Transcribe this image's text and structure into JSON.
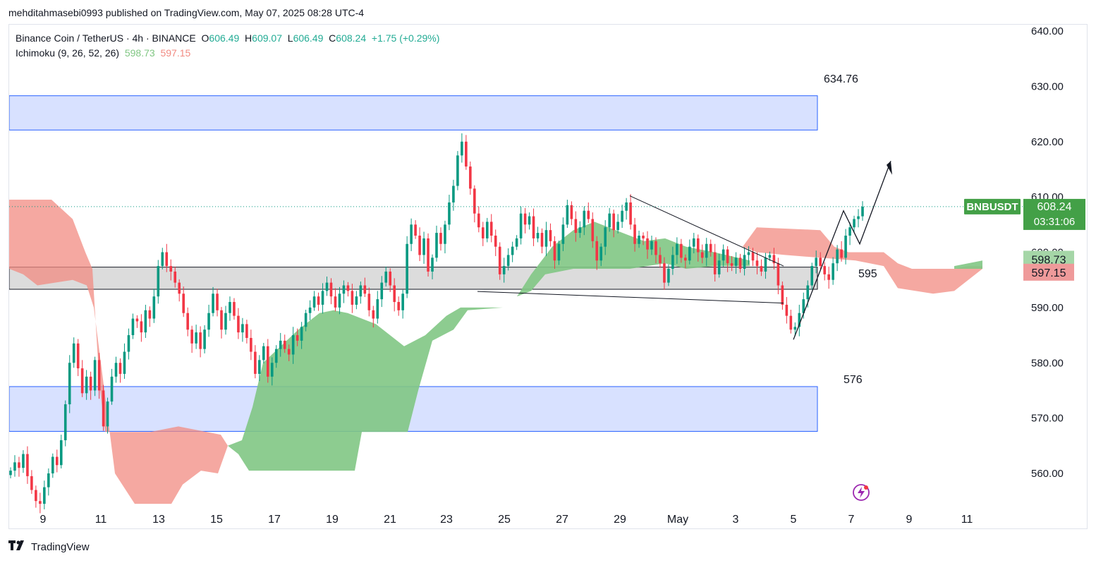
{
  "header": {
    "published": "mehditahmasebi0993 published on TradingView.com, May 07, 2025 08:28 UTC-4"
  },
  "legend": {
    "symbol": "Binance Coin / TetherUS · 4h · BINANCE",
    "o_label": "O",
    "o_value": "606.49",
    "h_label": "H",
    "h_value": "609.07",
    "l_label": "L",
    "l_value": "606.49",
    "c_label": "C",
    "c_value": "608.24",
    "change": "+1.75 (+0.29%)",
    "indicator": "Ichimoku (9, 26, 52, 26)",
    "ind_a": "598.73",
    "ind_b": "597.15"
  },
  "badges": {
    "symbol": "BNBUSDT",
    "price": "608.24",
    "countdown": "03:31:06",
    "span_a": "598.73",
    "span_b": "597.15"
  },
  "footer": {
    "brand": "TradingView"
  },
  "colors": {
    "up": "#089981",
    "down": "#f23645",
    "bull_cloud": "#81c784",
    "bear_cloud": "#f28b82",
    "zone_blue": "#d1dcff",
    "zone_blue_border": "#2962ff",
    "zone_gray": "#d6d6d6",
    "price_badge": "#43a047"
  },
  "chart_data": {
    "type": "candlestick",
    "title": "Binance Coin / TetherUS · 4h · BINANCE",
    "ylim": [
      554,
      642
    ],
    "y_ticks": [
      "640.00",
      "630.00",
      "620.00",
      "610.00",
      "600.00",
      "590.00",
      "580.00",
      "570.00",
      "560.00"
    ],
    "x_ticks": [
      "9",
      "11",
      "13",
      "15",
      "17",
      "19",
      "21",
      "23",
      "25",
      "27",
      "29",
      "May",
      "3",
      "5",
      "7",
      "9",
      "11"
    ],
    "zones": [
      {
        "label": "634.76",
        "type": "resistance",
        "top": 628.3,
        "bottom": 622.1
      },
      {
        "label": "595",
        "type": "pivot",
        "top": 597.3,
        "bottom": 593.3
      },
      {
        "label": "576",
        "type": "support",
        "top": 575.7,
        "bottom": 567.6
      }
    ],
    "current_price": 608.24,
    "ichimoku": {
      "span_a": 598.73,
      "span_b": 597.15
    },
    "candle_closes": [
      560.5,
      562.0,
      561.0,
      563.5,
      559.5,
      557.0,
      555.0,
      554.5,
      557.5,
      560.0,
      563.0,
      561.5,
      566.0,
      572.5,
      580.0,
      583.5,
      579.0,
      574.5,
      577.5,
      575.0,
      580.5,
      575.0,
      568.5,
      573.0,
      577.5,
      580.0,
      578.0,
      582.0,
      585.0,
      588.0,
      587.5,
      585.5,
      589.5,
      588.0,
      592.0,
      597.5,
      600.0,
      597.5,
      596.5,
      594.5,
      592.5,
      589.0,
      586.0,
      583.5,
      585.5,
      582.5,
      586.0,
      589.0,
      592.5,
      589.5,
      586.0,
      589.0,
      591.0,
      588.5,
      585.5,
      587.0,
      584.5,
      582.0,
      578.0,
      580.5,
      583.0,
      577.5,
      580.0,
      582.5,
      584.0,
      582.5,
      581.5,
      585.0,
      584.0,
      586.5,
      589.0,
      590.0,
      592.0,
      590.5,
      593.0,
      594.5,
      592.0,
      590.0,
      592.5,
      594.0,
      593.0,
      590.5,
      592.0,
      594.0,
      592.5,
      589.5,
      588.0,
      591.5,
      594.5,
      596.5,
      594.0,
      591.0,
      589.5,
      592.5,
      601.5,
      605.0,
      603.0,
      599.5,
      602.5,
      596.5,
      599.0,
      603.5,
      601.5,
      605.0,
      609.0,
      612.0,
      617.5,
      620.0,
      615.5,
      611.5,
      607.0,
      604.5,
      602.5,
      605.5,
      603.0,
      601.0,
      596.0,
      597.5,
      599.5,
      601.0,
      602.5,
      607.0,
      605.0,
      606.5,
      602.5,
      603.5,
      601.0,
      604.0,
      602.0,
      598.5,
      601.5,
      605.0,
      608.5,
      606.0,
      603.5,
      604.5,
      607.5,
      606.0,
      602.0,
      598.5,
      601.0,
      604.5,
      607.0,
      604.0,
      605.5,
      607.5,
      609.0,
      605.0,
      601.5,
      603.0,
      602.5,
      600.5,
      602.0,
      599.5,
      598.0,
      594.5,
      597.0,
      599.5,
      601.5,
      599.0,
      598.5,
      601.0,
      602.5,
      600.0,
      599.0,
      601.5,
      600.0,
      596.0,
      598.5,
      600.5,
      598.0,
      597.5,
      599.0,
      597.0,
      599.5,
      600.0,
      598.5,
      597.5,
      596.5,
      599.0,
      599.5,
      598.0,
      594.0,
      590.5,
      588.5,
      586.0,
      586.5,
      589.0,
      591.5,
      594.0,
      597.5,
      599.0,
      597.5,
      596.0,
      595.0,
      598.0,
      600.5,
      599.0,
      603.0,
      604.5,
      606.0,
      606.5,
      608.24
    ]
  }
}
